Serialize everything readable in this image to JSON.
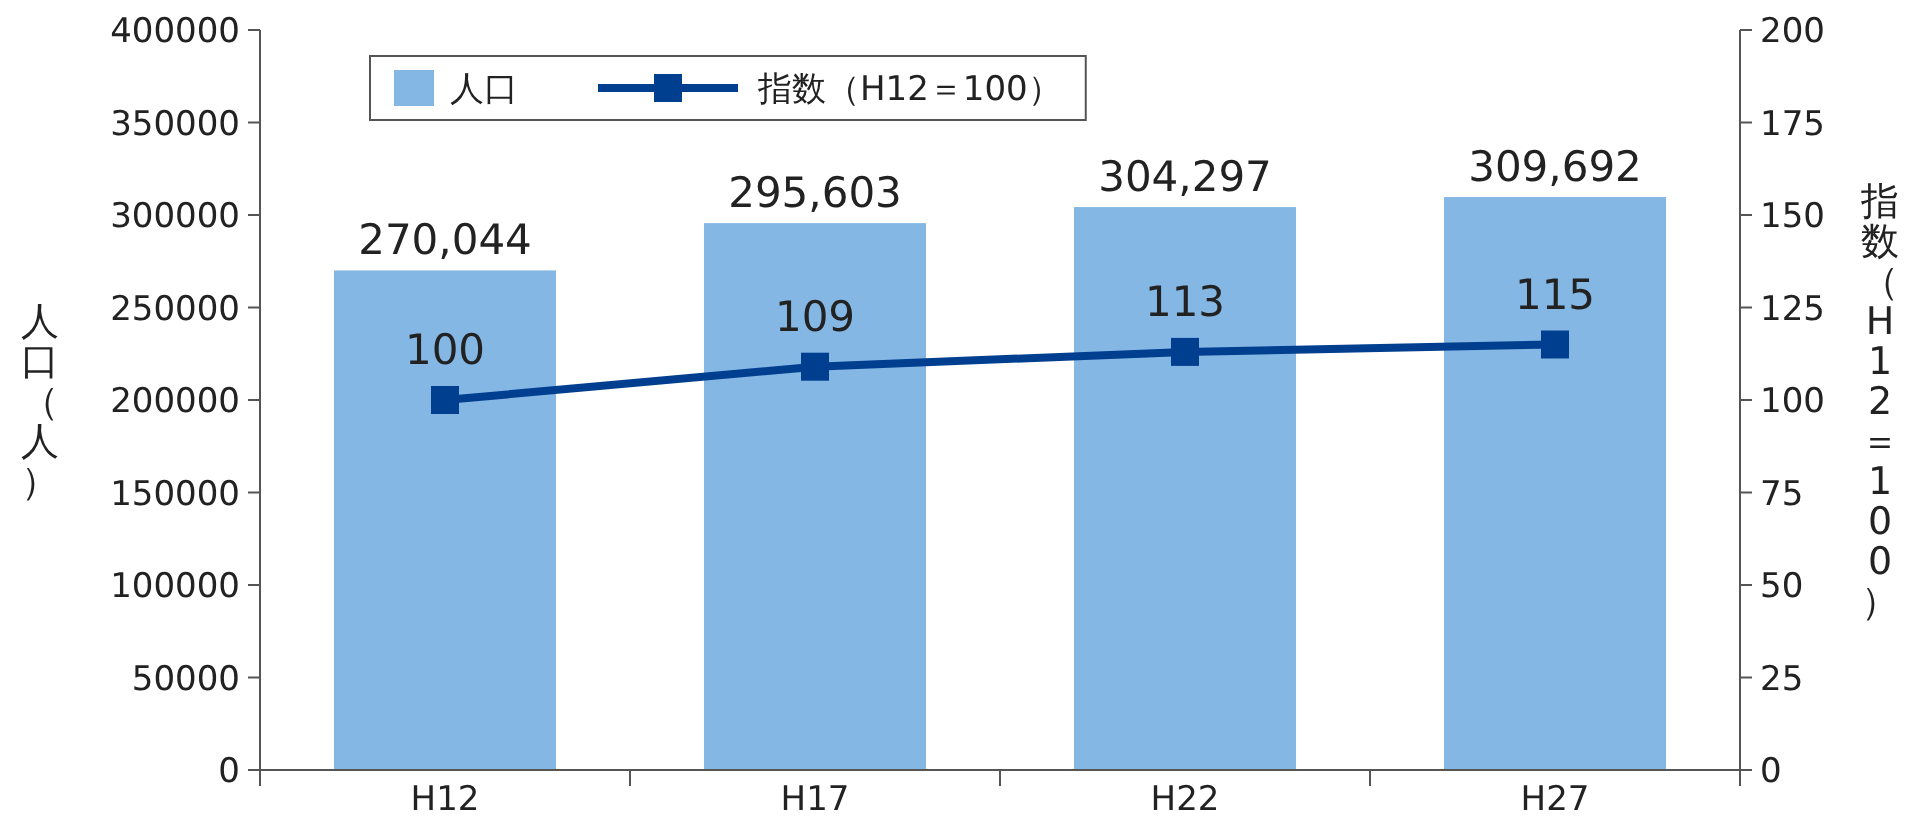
{
  "chart_data": {
    "type": "bar",
    "ylabel": "人口（人）",
    "y2label": "指数（H12＝100）",
    "categories": [
      "H12",
      "H17",
      "H22",
      "H27"
    ],
    "series": [
      {
        "name": "人口",
        "color": "#85b7e5",
        "values": [
          270044,
          295603,
          304297,
          309692
        ],
        "value_labels": [
          "270,044",
          "295,603",
          "304,297",
          "309,692"
        ]
      },
      {
        "name": "指数（H12＝100）",
        "type": "line",
        "axis": "y2",
        "color": "#003f8f",
        "marker": "square",
        "values": [
          100,
          109,
          113,
          115
        ],
        "value_labels": [
          "100",
          "109",
          "113",
          "115"
        ]
      }
    ],
    "ylim": [
      0,
      400000
    ],
    "yticks": [
      0,
      50000,
      100000,
      150000,
      200000,
      250000,
      300000,
      350000,
      400000
    ],
    "y2lim": [
      0,
      200
    ],
    "y2ticks": [
      0,
      25,
      50,
      75,
      100,
      125,
      150,
      175,
      200
    ],
    "legend": "top left",
    "grid": false
  }
}
